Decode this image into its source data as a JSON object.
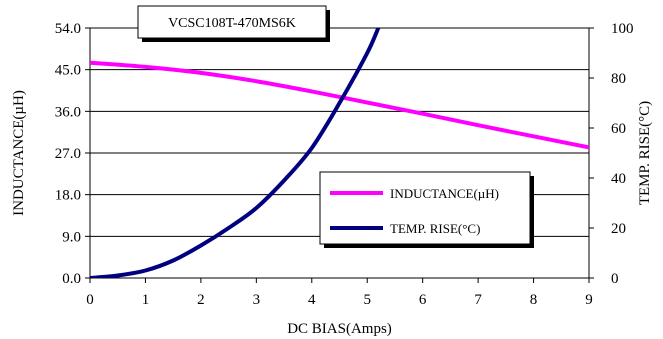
{
  "chart_data": {
    "type": "line",
    "title": "VCSC108T-470MS6K",
    "xlabel": "DC BIAS(Amps)",
    "ylabel_left": "INDUCTANCE(µH)",
    "ylabel_right": "TEMP. RISE(°C)",
    "xlim": [
      0,
      9
    ],
    "ylim_left": [
      0,
      54
    ],
    "ylim_right": [
      0,
      100
    ],
    "x_ticks": [
      "0",
      "1",
      "2",
      "3",
      "4",
      "5",
      "6",
      "7",
      "8",
      "9"
    ],
    "y_left_ticks": [
      "0.0",
      "9.0",
      "18.0",
      "27.0",
      "36.0",
      "45.0",
      "54.0"
    ],
    "y_right_ticks": [
      "0",
      "20",
      "40",
      "60",
      "80",
      "100"
    ],
    "grid": "horizontal",
    "legend_position": "center-right",
    "series": [
      {
        "name": "INDUCTANCE(µH)",
        "axis": "left",
        "color": "#ff00ff",
        "x": [
          0,
          1,
          2,
          3,
          4,
          5,
          6,
          7,
          8,
          9
        ],
        "values": [
          46.5,
          45.6,
          44.3,
          42.5,
          40.3,
          37.9,
          35.5,
          33.0,
          30.6,
          28.2
        ]
      },
      {
        "name": "TEMP. RISE(°C)",
        "axis": "right",
        "color": "#000080",
        "x": [
          0,
          0.5,
          1,
          1.5,
          2,
          2.5,
          3,
          3.5,
          4,
          4.5,
          5,
          5.2
        ],
        "values": [
          0,
          1,
          3,
          7,
          13,
          20,
          28,
          39,
          52,
          70,
          90,
          100
        ]
      }
    ]
  }
}
